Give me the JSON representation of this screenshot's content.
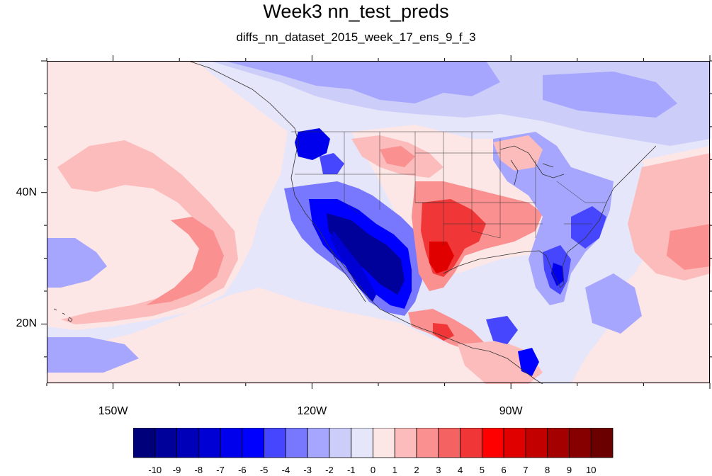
{
  "title": "Week3 nn_test_preds",
  "subtitle": "diffs_nn_dataset_2015_week_17_ens_9_f_3",
  "map": {
    "lon_range": [
      -160,
      -60
    ],
    "lat_range": [
      11,
      60
    ],
    "lon_labels": [
      {
        "value": -150,
        "text": "150W"
      },
      {
        "value": -120,
        "text": "120W"
      },
      {
        "value": -90,
        "text": "90W"
      }
    ],
    "lat_labels": [
      {
        "value": 40,
        "text": "40N"
      },
      {
        "value": 20,
        "text": "20N"
      }
    ],
    "anomaly_features": [
      {
        "name": "pacific-warm-plume",
        "value": 2
      },
      {
        "name": "southwest-cold-core",
        "value": -8
      },
      {
        "name": "gulf-of-california-cold",
        "value": -6
      },
      {
        "name": "pacific-northwest-cold",
        "value": -6
      },
      {
        "name": "southern-plains-warm",
        "value": 4
      },
      {
        "name": "texas-warm-core",
        "value": 6
      },
      {
        "name": "florida-cold",
        "value": -5
      },
      {
        "name": "mexico-warm",
        "value": 5
      },
      {
        "name": "atlantic-warm",
        "value": 2
      },
      {
        "name": "canada-cold",
        "value": -3
      }
    ]
  },
  "colorbar": {
    "labels": [
      "-10",
      "-9",
      "-8",
      "-7",
      "-6",
      "-5",
      "-4",
      "-3",
      "-2",
      "-1",
      "0",
      "1",
      "2",
      "3",
      "4",
      "5",
      "6",
      "7",
      "8",
      "9",
      "10"
    ],
    "colors": [
      "#00007a",
      "#00009a",
      "#0000b8",
      "#0000d4",
      "#0000ec",
      "#0000ff",
      "#4646ff",
      "#7878ff",
      "#a6a6ff",
      "#cdcdfa",
      "#e6e6fa",
      "#fde6e6",
      "#fcbcbc",
      "#fa9090",
      "#f46262",
      "#f03636",
      "#ff0000",
      "#e00000",
      "#c20000",
      "#a40000",
      "#860000",
      "#6a0000"
    ]
  }
}
